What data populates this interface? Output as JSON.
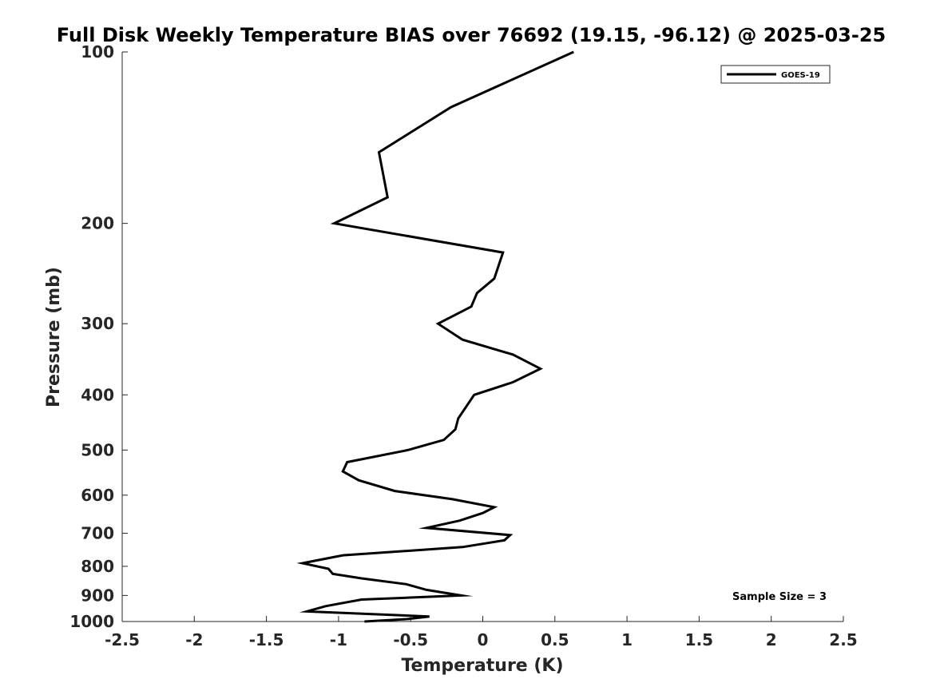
{
  "chart_data": {
    "type": "line",
    "title": "Full Disk Weekly Temperature BIAS over 76692 (19.15, -96.12) @ 2025-03-25",
    "xlabel": "Temperature (K)",
    "ylabel": "Pressure (mb)",
    "xlim": [
      -2.5,
      2.5
    ],
    "ylim": [
      100,
      1000
    ],
    "y_scale": "log",
    "y_reversed": true,
    "grid": false,
    "legend_position": "top-right",
    "x_ticks": [
      {
        "value": -2.5,
        "label": "-2.5"
      },
      {
        "value": -2,
        "label": "-2"
      },
      {
        "value": -1.5,
        "label": "-1.5"
      },
      {
        "value": -1,
        "label": "-1"
      },
      {
        "value": -0.5,
        "label": "-0.5"
      },
      {
        "value": 0,
        "label": "0"
      },
      {
        "value": 0.5,
        "label": "0.5"
      },
      {
        "value": 1,
        "label": "1"
      },
      {
        "value": 1.5,
        "label": "1.5"
      },
      {
        "value": 2,
        "label": "2"
      },
      {
        "value": 2.5,
        "label": "2.5"
      }
    ],
    "y_ticks": [
      {
        "value": 100,
        "label": "100"
      },
      {
        "value": 200,
        "label": "200"
      },
      {
        "value": 300,
        "label": "300"
      },
      {
        "value": 400,
        "label": "400"
      },
      {
        "value": 500,
        "label": "500"
      },
      {
        "value": 600,
        "label": "600"
      },
      {
        "value": 700,
        "label": "700"
      },
      {
        "value": 800,
        "label": "800"
      },
      {
        "value": 900,
        "label": "900"
      },
      {
        "value": 1000,
        "label": "1000"
      }
    ],
    "series": [
      {
        "name": "GOES-19",
        "color": "#000000",
        "points": [
          {
            "x": 0.63,
            "p": 100
          },
          {
            "x": -0.22,
            "p": 125
          },
          {
            "x": -0.72,
            "p": 150
          },
          {
            "x": -0.66,
            "p": 180
          },
          {
            "x": -1.03,
            "p": 200
          },
          {
            "x": 0.14,
            "p": 225
          },
          {
            "x": 0.08,
            "p": 250
          },
          {
            "x": -0.04,
            "p": 265
          },
          {
            "x": -0.08,
            "p": 280
          },
          {
            "x": -0.31,
            "p": 300
          },
          {
            "x": -0.14,
            "p": 320
          },
          {
            "x": 0.21,
            "p": 340
          },
          {
            "x": 0.4,
            "p": 360
          },
          {
            "x": 0.21,
            "p": 380
          },
          {
            "x": -0.06,
            "p": 400
          },
          {
            "x": -0.17,
            "p": 440
          },
          {
            "x": -0.19,
            "p": 460
          },
          {
            "x": -0.27,
            "p": 480
          },
          {
            "x": -0.52,
            "p": 500
          },
          {
            "x": -0.94,
            "p": 525
          },
          {
            "x": -0.97,
            "p": 545
          },
          {
            "x": -0.86,
            "p": 565
          },
          {
            "x": -0.61,
            "p": 590
          },
          {
            "x": -0.21,
            "p": 610
          },
          {
            "x": 0.08,
            "p": 630
          },
          {
            "x": 0.0,
            "p": 645
          },
          {
            "x": -0.16,
            "p": 665
          },
          {
            "x": -0.39,
            "p": 685
          },
          {
            "x": 0.19,
            "p": 705
          },
          {
            "x": 0.15,
            "p": 720
          },
          {
            "x": -0.14,
            "p": 740
          },
          {
            "x": -0.97,
            "p": 765
          },
          {
            "x": -1.25,
            "p": 790
          },
          {
            "x": -1.07,
            "p": 808
          },
          {
            "x": -1.04,
            "p": 825
          },
          {
            "x": -0.84,
            "p": 840
          },
          {
            "x": -0.53,
            "p": 860
          },
          {
            "x": -0.39,
            "p": 880
          },
          {
            "x": -0.15,
            "p": 900
          },
          {
            "x": -0.84,
            "p": 915
          },
          {
            "x": -1.09,
            "p": 940
          },
          {
            "x": -1.22,
            "p": 960
          },
          {
            "x": -0.37,
            "p": 980
          },
          {
            "x": -0.52,
            "p": 990
          },
          {
            "x": -0.82,
            "p": 1000
          }
        ]
      }
    ],
    "annotations": [
      {
        "text": "Sample Size = 3",
        "position": "bottom-right"
      }
    ]
  }
}
